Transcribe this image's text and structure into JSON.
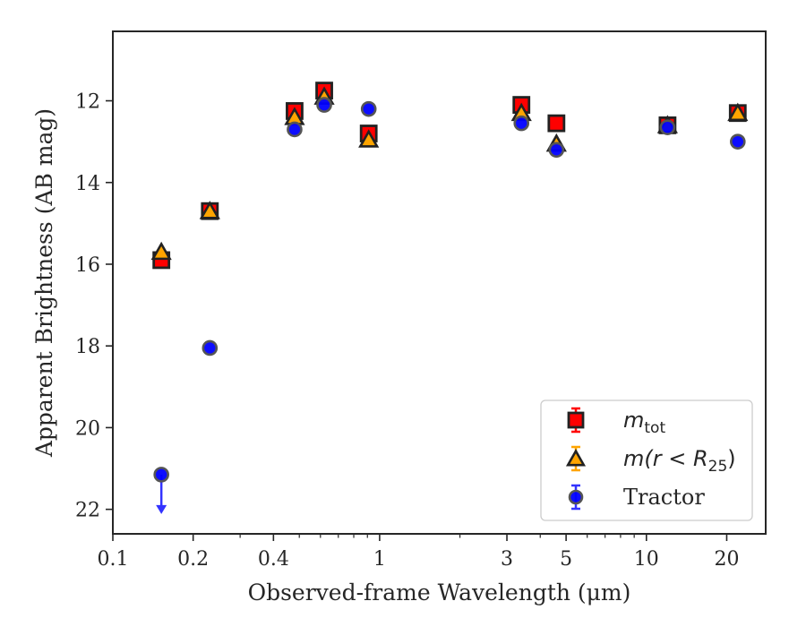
{
  "chart_data": {
    "type": "scatter",
    "xscale": "log",
    "xlim": [
      0.1,
      28
    ],
    "ylim": [
      22.6,
      10.3
    ],
    "y_inverted": true,
    "xlabel": "Observed-frame Wavelength (μm)",
    "ylabel": "Apparent Brightness (AB mag)",
    "xticks": [
      {
        "value": 0.1,
        "label": "0.1"
      },
      {
        "value": 0.2,
        "label": "0.2"
      },
      {
        "value": 0.4,
        "label": "0.4"
      },
      {
        "value": 1,
        "label": "1"
      },
      {
        "value": 3,
        "label": "3"
      },
      {
        "value": 5,
        "label": "5"
      },
      {
        "value": 10,
        "label": "10"
      },
      {
        "value": 20,
        "label": "20"
      }
    ],
    "yticks": [
      {
        "value": 12,
        "label": "12"
      },
      {
        "value": 14,
        "label": "14"
      },
      {
        "value": 16,
        "label": "16"
      },
      {
        "value": 18,
        "label": "18"
      },
      {
        "value": 20,
        "label": "20"
      },
      {
        "value": 22,
        "label": "22"
      }
    ],
    "grid": false,
    "legend_position": "lower-right",
    "series": [
      {
        "key": "mtot",
        "name": "m",
        "name_sub": "tot",
        "marker": "square",
        "color": "#ff0000",
        "edge_color": "#222222",
        "points": [
          {
            "x": 0.152,
            "y": 15.9
          },
          {
            "x": 0.231,
            "y": 14.7
          },
          {
            "x": 0.48,
            "y": 12.25
          },
          {
            "x": 0.62,
            "y": 11.75
          },
          {
            "x": 0.91,
            "y": 12.8
          },
          {
            "x": 3.4,
            "y": 12.1
          },
          {
            "x": 4.6,
            "y": 12.55
          },
          {
            "x": 12.0,
            "y": 12.6
          },
          {
            "x": 22.0,
            "y": 12.3
          }
        ]
      },
      {
        "key": "mr25",
        "name": "m(r < R",
        "name_sub": "25",
        "name_tail": ")",
        "marker": "triangle",
        "color": "#ffa500",
        "edge_color": "#222222",
        "points": [
          {
            "x": 0.152,
            "y": 15.7
          },
          {
            "x": 0.231,
            "y": 14.7
          },
          {
            "x": 0.48,
            "y": 12.4
          },
          {
            "x": 0.62,
            "y": 11.9
          },
          {
            "x": 0.91,
            "y": 12.95
          },
          {
            "x": 3.4,
            "y": 12.3
          },
          {
            "x": 4.6,
            "y": 13.05
          },
          {
            "x": 12.0,
            "y": 12.6
          },
          {
            "x": 22.0,
            "y": 12.3
          }
        ]
      },
      {
        "key": "tractor",
        "name": "Tractor",
        "marker": "circle",
        "color": "#0000ff",
        "edge_color": "#555555",
        "points": [
          {
            "x": 0.152,
            "y": 21.15,
            "upper_limit": true
          },
          {
            "x": 0.231,
            "y": 18.05
          },
          {
            "x": 0.48,
            "y": 12.7
          },
          {
            "x": 0.62,
            "y": 12.1
          },
          {
            "x": 0.91,
            "y": 12.2
          },
          {
            "x": 3.4,
            "y": 12.55
          },
          {
            "x": 4.6,
            "y": 13.2
          },
          {
            "x": 12.0,
            "y": 12.65
          },
          {
            "x": 22.0,
            "y": 13.0
          }
        ]
      }
    ]
  }
}
